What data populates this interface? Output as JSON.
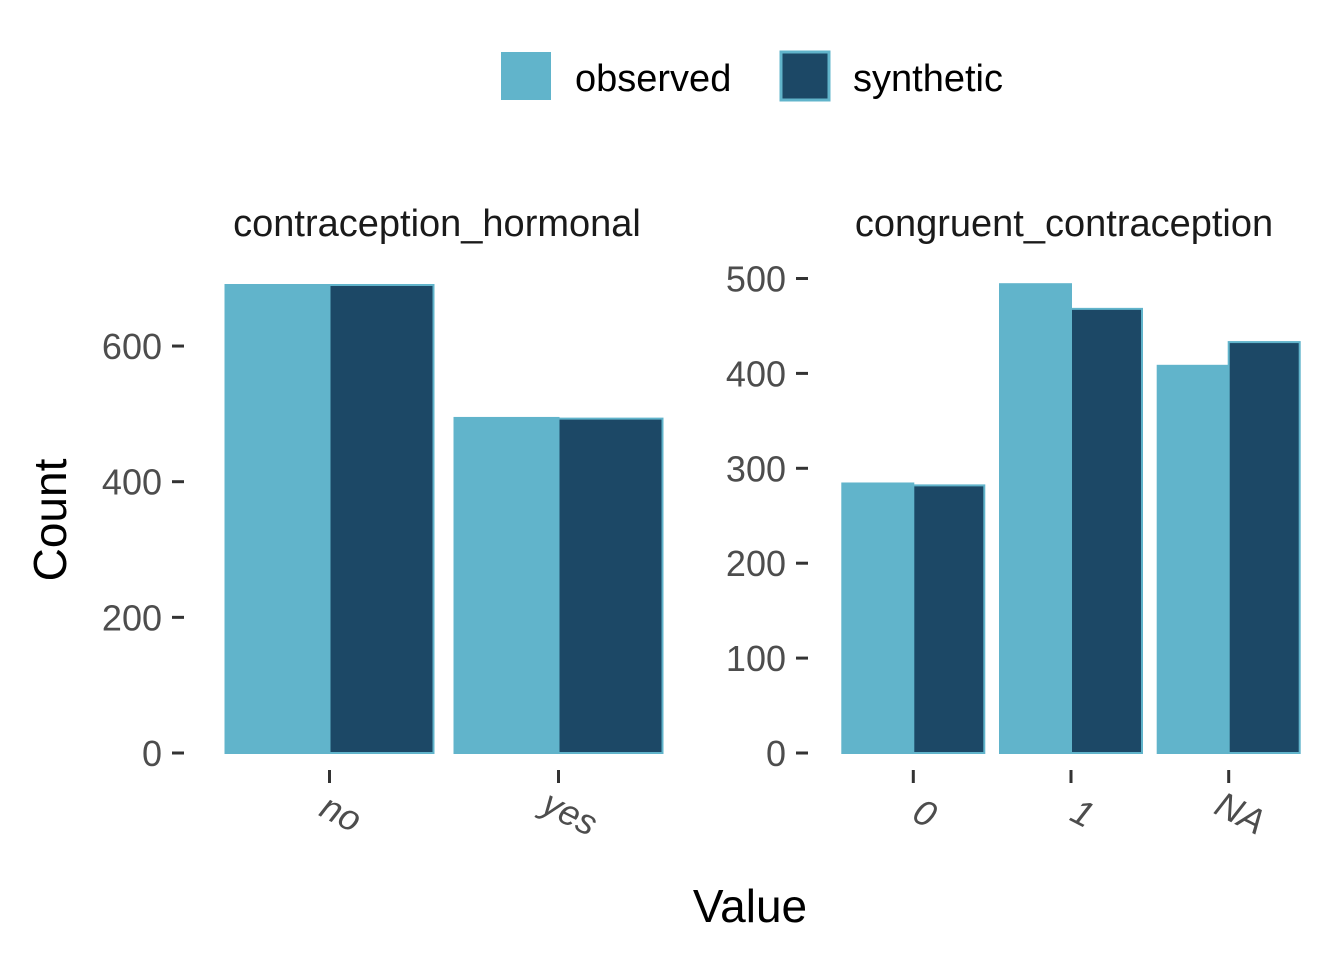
{
  "colors": {
    "observed": "#61b4cb",
    "synthetic": "#1c4866",
    "bar_outline": "#61b4cb",
    "tick": "#333333"
  },
  "legend": {
    "position": "top",
    "items": [
      {
        "key": "observed",
        "label": "observed"
      },
      {
        "key": "synthetic",
        "label": "synthetic"
      }
    ]
  },
  "axis": {
    "x_title": "Value",
    "y_title": "Count"
  },
  "chart_data": [
    {
      "type": "bar",
      "title": "contraception_hormonal",
      "categories": [
        "no",
        "yes"
      ],
      "series": [
        {
          "name": "observed",
          "values": [
            690,
            494
          ]
        },
        {
          "name": "synthetic",
          "values": [
            690,
            493
          ]
        }
      ],
      "ylim": [
        0,
        700
      ],
      "yticks": [
        0,
        200,
        400,
        600
      ],
      "ytick_labels": [
        "0",
        "200",
        "400",
        "600"
      ],
      "grid": false
    },
    {
      "type": "bar",
      "title": "congruent_contraception",
      "categories": [
        "0",
        "1",
        "NA"
      ],
      "series": [
        {
          "name": "observed",
          "values": [
            284,
            494,
            408
          ]
        },
        {
          "name": "synthetic",
          "values": [
            282,
            468,
            433
          ]
        }
      ],
      "ylim": [
        0,
        500
      ],
      "yticks": [
        0,
        100,
        200,
        300,
        400,
        500
      ],
      "ytick_labels": [
        "0",
        "100",
        "200",
        "300",
        "400",
        "500"
      ],
      "grid": false
    }
  ]
}
